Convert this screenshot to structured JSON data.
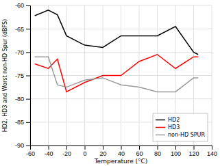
{
  "chart_data": {
    "type": "line",
    "xlabel": "Temperature (°C)",
    "ylabel": "HD2, HD3 and Worst non-HD Spur (dBFS)",
    "x": [
      -55,
      -40,
      -30,
      -20,
      0,
      20,
      40,
      60,
      80,
      100,
      120,
      125
    ],
    "series": [
      {
        "name": "HD2",
        "color": "#000000",
        "values": [
          -62.2,
          -61.0,
          -62.0,
          -66.5,
          -68.5,
          -69.0,
          -66.5,
          -66.5,
          -66.5,
          -64.5,
          -70.0,
          -70.5
        ]
      },
      {
        "name": "HD3",
        "color": "#ff0000",
        "values": [
          -72.5,
          -73.5,
          -71.5,
          -78.5,
          -76.5,
          -75.0,
          -75.0,
          -72.0,
          -70.5,
          -73.5,
          -71.0,
          -71.0
        ]
      },
      {
        "name": "non-HD SPUR",
        "color": "#999999",
        "values": [
          -71.0,
          -71.0,
          -77.0,
          -77.5,
          -76.0,
          -75.5,
          -77.0,
          -77.5,
          -78.5,
          -78.5,
          -75.5,
          -75.5
        ]
      }
    ],
    "xlim": [
      -60,
      140
    ],
    "ylim": [
      -90,
      -60
    ],
    "xticks": [
      -60,
      -40,
      -20,
      0,
      20,
      40,
      60,
      80,
      100,
      120,
      140
    ],
    "yticks": [
      -90,
      -85,
      -80,
      -75,
      -70,
      -65,
      -60
    ],
    "grid": true,
    "legend": "lower right"
  }
}
